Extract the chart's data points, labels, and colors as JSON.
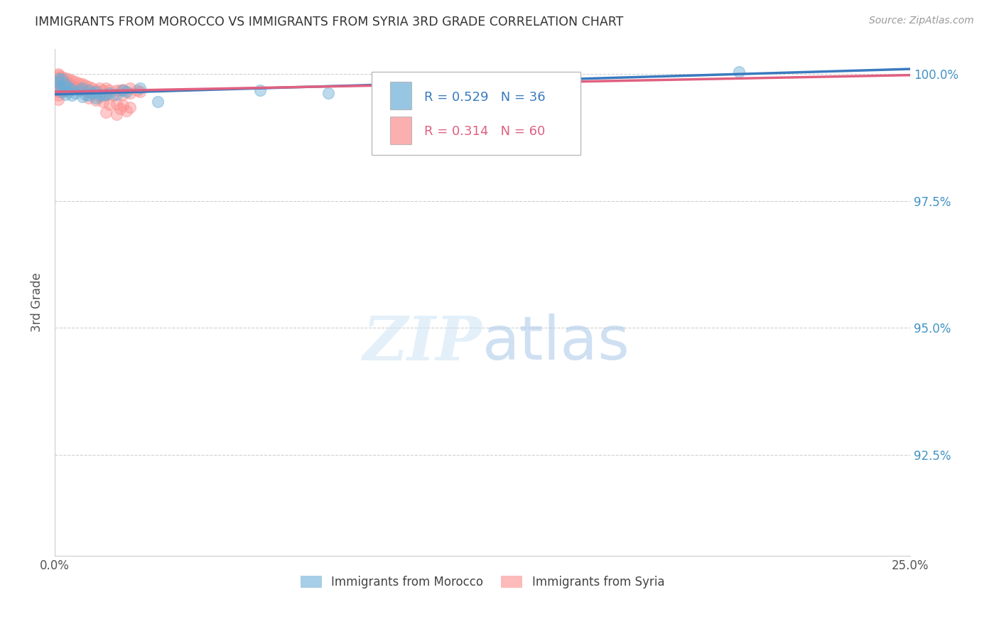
{
  "title": "IMMIGRANTS FROM MOROCCO VS IMMIGRANTS FROM SYRIA 3RD GRADE CORRELATION CHART",
  "source": "Source: ZipAtlas.com",
  "ylabel": "3rd Grade",
  "morocco_color": "#6baed6",
  "syria_color": "#fc8d8d",
  "morocco_line_color": "#3a7abf",
  "syria_line_color": "#e06080",
  "morocco_R": 0.529,
  "morocco_N": 36,
  "syria_R": 0.314,
  "syria_N": 60,
  "legend_label_morocco": "Immigrants from Morocco",
  "legend_label_syria": "Immigrants from Syria",
  "xlim": [
    0.0,
    0.25
  ],
  "ylim": [
    0.905,
    1.005
  ],
  "yticks": [
    0.925,
    0.95,
    0.975,
    1.0
  ],
  "xticks": [
    0.0,
    0.05,
    0.1,
    0.15,
    0.2,
    0.25
  ],
  "xtick_labels": [
    "0.0%",
    "",
    "",
    "",
    "",
    "25.0%"
  ],
  "ytick_labels_right": [
    "92.5%",
    "95.0%",
    "97.5%",
    "100.0%"
  ],
  "morocco_points": [
    [
      0.001,
      0.9975
    ],
    [
      0.001,
      0.9985
    ],
    [
      0.001,
      0.999
    ],
    [
      0.002,
      0.9965
    ],
    [
      0.002,
      0.9975
    ],
    [
      0.002,
      0.999
    ],
    [
      0.003,
      0.996
    ],
    [
      0.003,
      0.9972
    ],
    [
      0.003,
      0.998
    ],
    [
      0.004,
      0.9965
    ],
    [
      0.004,
      0.9975
    ],
    [
      0.005,
      0.9958
    ],
    [
      0.005,
      0.997
    ],
    [
      0.006,
      0.9962
    ],
    [
      0.007,
      0.9968
    ],
    [
      0.008,
      0.9955
    ],
    [
      0.008,
      0.9972
    ],
    [
      0.009,
      0.996
    ],
    [
      0.01,
      0.9958
    ],
    [
      0.01,
      0.9968
    ],
    [
      0.011,
      0.9963
    ],
    [
      0.012,
      0.9952
    ],
    [
      0.012,
      0.9965
    ],
    [
      0.013,
      0.996
    ],
    [
      0.014,
      0.9958
    ],
    [
      0.015,
      0.996
    ],
    [
      0.016,
      0.9963
    ],
    [
      0.018,
      0.996
    ],
    [
      0.02,
      0.9968
    ],
    [
      0.021,
      0.9965
    ],
    [
      0.025,
      0.9972
    ],
    [
      0.03,
      0.9945
    ],
    [
      0.06,
      0.9968
    ],
    [
      0.08,
      0.9962
    ],
    [
      0.12,
      0.9972
    ],
    [
      0.2,
      1.0005
    ]
  ],
  "syria_points": [
    [
      0.001,
      0.9993
    ],
    [
      0.001,
      0.9998
    ],
    [
      0.001,
      1.0
    ],
    [
      0.001,
      0.9985
    ],
    [
      0.001,
      0.9978
    ],
    [
      0.001,
      0.997
    ],
    [
      0.001,
      0.9965
    ],
    [
      0.001,
      0.9958
    ],
    [
      0.001,
      0.995
    ],
    [
      0.002,
      0.9995
    ],
    [
      0.002,
      0.9988
    ],
    [
      0.002,
      0.998
    ],
    [
      0.002,
      0.9972
    ],
    [
      0.002,
      0.9965
    ],
    [
      0.003,
      0.9992
    ],
    [
      0.003,
      0.9985
    ],
    [
      0.003,
      0.9975
    ],
    [
      0.003,
      0.9968
    ],
    [
      0.004,
      0.999
    ],
    [
      0.004,
      0.9982
    ],
    [
      0.004,
      0.9972
    ],
    [
      0.005,
      0.9988
    ],
    [
      0.005,
      0.9978
    ],
    [
      0.006,
      0.9985
    ],
    [
      0.006,
      0.9975
    ],
    [
      0.007,
      0.9982
    ],
    [
      0.007,
      0.9972
    ],
    [
      0.008,
      0.998
    ],
    [
      0.008,
      0.997
    ],
    [
      0.009,
      0.9978
    ],
    [
      0.01,
      0.9975
    ],
    [
      0.01,
      0.9965
    ],
    [
      0.011,
      0.9972
    ],
    [
      0.012,
      0.9968
    ],
    [
      0.013,
      0.9972
    ],
    [
      0.014,
      0.9968
    ],
    [
      0.015,
      0.9972
    ],
    [
      0.016,
      0.9968
    ],
    [
      0.018,
      0.9968
    ],
    [
      0.019,
      0.9968
    ],
    [
      0.02,
      0.997
    ],
    [
      0.02,
      0.996
    ],
    [
      0.022,
      0.9972
    ],
    [
      0.022,
      0.9962
    ],
    [
      0.024,
      0.9968
    ],
    [
      0.025,
      0.9965
    ],
    [
      0.015,
      0.996
    ],
    [
      0.017,
      0.9958
    ],
    [
      0.013,
      0.9955
    ],
    [
      0.01,
      0.9952
    ],
    [
      0.012,
      0.9948
    ],
    [
      0.014,
      0.9945
    ],
    [
      0.018,
      0.9942
    ],
    [
      0.016,
      0.994
    ],
    [
      0.02,
      0.9938
    ],
    [
      0.022,
      0.9935
    ],
    [
      0.019,
      0.9932
    ],
    [
      0.021,
      0.9928
    ],
    [
      0.015,
      0.9925
    ],
    [
      0.018,
      0.992
    ]
  ],
  "watermark_zip": "ZIP",
  "watermark_atlas": "atlas",
  "background_color": "#ffffff",
  "grid_color": "#d0d0d0",
  "title_color": "#333333",
  "right_label_color": "#4393c3",
  "source_color": "#999999"
}
